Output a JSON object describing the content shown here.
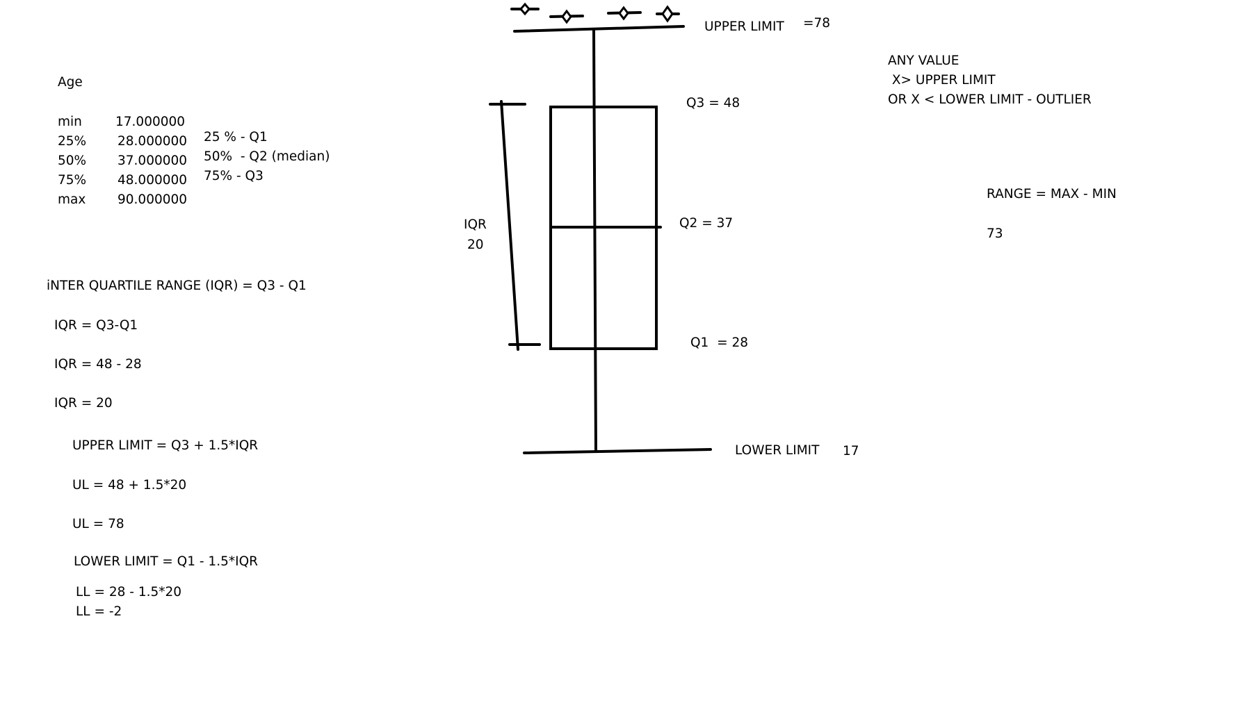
{
  "stats": {
    "variable": "Age",
    "rows": [
      {
        "label": "min",
        "value": "17.000000",
        "note": ""
      },
      {
        "label": "25%",
        "value": "28.000000",
        "note": "25 % - Q1"
      },
      {
        "label": "50%",
        "value": "37.000000",
        "note": "50%  - Q2 (median)"
      },
      {
        "label": "75%",
        "value": "48.000000",
        "note": "75% - Q3"
      },
      {
        "label": "max",
        "value": "90.000000",
        "note": ""
      }
    ]
  },
  "formulas": {
    "iqr_heading": "iNTER QUARTILE RANGE (IQR) = Q3 - Q1",
    "iqr_1": "IQR = Q3-Q1",
    "iqr_2": "IQR = 48 - 28",
    "iqr_3": "IQR = 20",
    "ul_heading": "UPPER LIMIT = Q3 + 1.5*IQR",
    "ul_1": "UL = 48 + 1.5*20",
    "ul_2": "UL = 78",
    "ll_heading": "LOWER LIMIT = Q1 - 1.5*IQR",
    "ll_1": "LL = 28 - 1.5*20",
    "ll_2": "LL = -2"
  },
  "boxplot": {
    "upper_limit_label": "UPPER LIMIT",
    "upper_limit_value": "=78",
    "q3_label": "Q3 = 48",
    "q2_label": "Q2 = 37",
    "q1_label": "Q1  = 28",
    "lower_limit_label": "LOWER LIMIT",
    "lower_limit_value": "17",
    "iqr_label": "IQR",
    "iqr_value": "20",
    "stroke_color": "#000000"
  },
  "notes": {
    "outlier_1": "ANY VALUE",
    "outlier_2": " X> UPPER LIMIT",
    "outlier_3": "OR X < LOWER LIMIT - OUTLIER",
    "range_formula": "RANGE = MAX - MIN",
    "range_value": "73"
  }
}
